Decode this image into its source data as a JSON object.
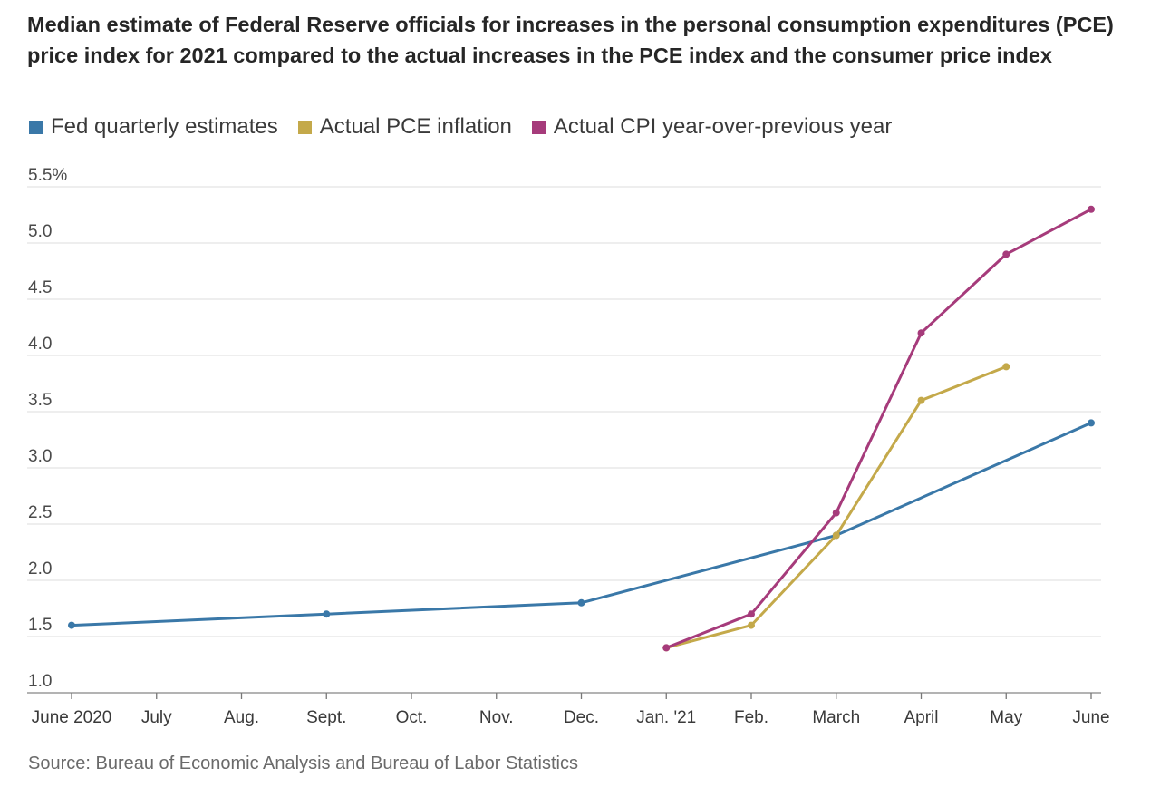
{
  "chart_data": {
    "type": "line",
    "title": "Median estimate of Federal Reserve officials for increases in the personal consumption expenditures (PCE) price index for 2021 compared to the actual increases in the PCE index and the consumer price index",
    "xlabel": "",
    "ylabel": "",
    "categories": [
      "June 2020",
      "July",
      "Aug.",
      "Sept.",
      "Oct.",
      "Nov.",
      "Dec.",
      "Jan. '21",
      "Feb.",
      "March",
      "April",
      "May",
      "June"
    ],
    "ylim": [
      1.0,
      5.5
    ],
    "y_ticks": [
      1.0,
      1.5,
      2.0,
      2.5,
      3.0,
      3.5,
      4.0,
      4.5,
      5.0,
      5.5
    ],
    "y_tick_labels": [
      "1.0",
      "1.5",
      "2.0",
      "2.5",
      "3.0",
      "3.5",
      "4.0",
      "4.5",
      "5.0",
      "5.5%"
    ],
    "legend_position": "top-left",
    "series": [
      {
        "name": "Fed quarterly estimates",
        "color": "#3a78a8",
        "points": [
          [
            0,
            1.6
          ],
          [
            3,
            1.7
          ],
          [
            6,
            1.8
          ],
          [
            9,
            2.4
          ],
          [
            12,
            3.4
          ]
        ]
      },
      {
        "name": "Actual PCE inflation",
        "color": "#c4a94a",
        "points": [
          [
            7,
            1.4
          ],
          [
            8,
            1.6
          ],
          [
            9,
            2.4
          ],
          [
            10,
            3.6
          ],
          [
            11,
            3.9
          ]
        ]
      },
      {
        "name": "Actual CPI year-over-previous year",
        "color": "#a63b7b",
        "points": [
          [
            7,
            1.4
          ],
          [
            8,
            1.7
          ],
          [
            9,
            2.6
          ],
          [
            10,
            4.2
          ],
          [
            11,
            4.9
          ],
          [
            12,
            5.3
          ]
        ]
      }
    ],
    "source": "Source: Bureau of Economic Analysis and Bureau of Labor Statistics"
  }
}
